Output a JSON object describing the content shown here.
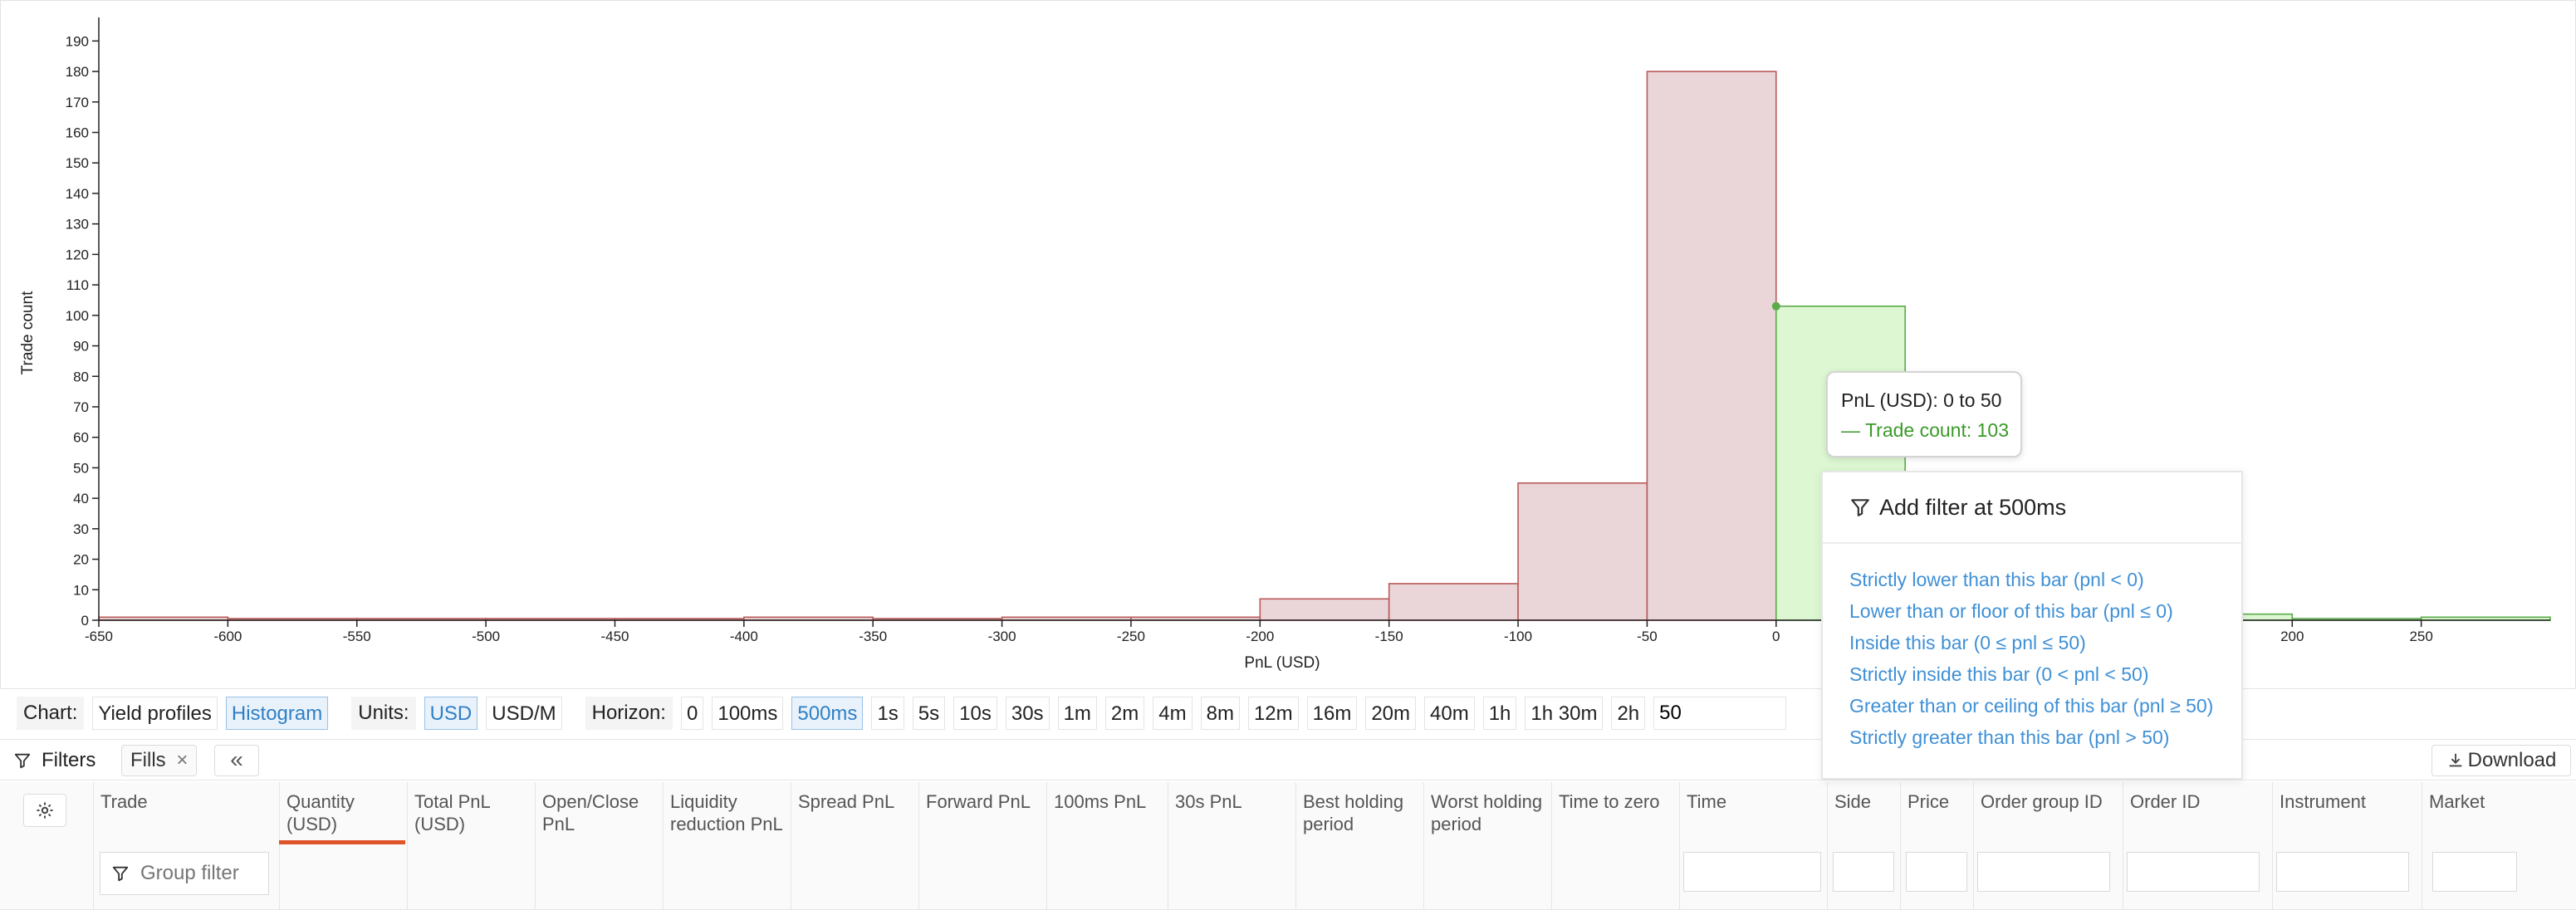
{
  "chart_data": {
    "type": "bar",
    "bin_width": 50,
    "bins": [
      {
        "start": -650,
        "end": -600,
        "count": 1,
        "side": "loss"
      },
      {
        "start": -600,
        "end": -550,
        "count": 0,
        "side": "loss"
      },
      {
        "start": -550,
        "end": -500,
        "count": 0,
        "side": "loss"
      },
      {
        "start": -500,
        "end": -450,
        "count": 0,
        "side": "loss"
      },
      {
        "start": -450,
        "end": -400,
        "count": 0,
        "side": "loss"
      },
      {
        "start": -400,
        "end": -350,
        "count": 1,
        "side": "loss"
      },
      {
        "start": -350,
        "end": -300,
        "count": 0,
        "side": "loss"
      },
      {
        "start": -300,
        "end": -250,
        "count": 1,
        "side": "loss"
      },
      {
        "start": -250,
        "end": -200,
        "count": 1,
        "side": "loss"
      },
      {
        "start": -200,
        "end": -150,
        "count": 7,
        "side": "loss"
      },
      {
        "start": -150,
        "end": -100,
        "count": 12,
        "side": "loss"
      },
      {
        "start": -100,
        "end": -50,
        "count": 45,
        "side": "loss"
      },
      {
        "start": -50,
        "end": 0,
        "count": 180,
        "side": "loss"
      },
      {
        "start": 0,
        "end": 50,
        "count": 103,
        "side": "gain"
      },
      {
        "start": 150,
        "end": 200,
        "count": 2,
        "side": "gain"
      },
      {
        "start": 200,
        "end": 250,
        "count": 0,
        "side": "gain"
      },
      {
        "start": 250,
        "end": 300,
        "count": 1,
        "side": "gain"
      }
    ],
    "xlabel": "PnL (USD)",
    "ylabel": "Trade count",
    "xlim": [
      -650,
      300
    ],
    "ylim": [
      0,
      195
    ],
    "xticks": [
      -650,
      -600,
      -550,
      -500,
      -450,
      -400,
      -350,
      -300,
      -250,
      -200,
      -150,
      -100,
      -50,
      0,
      200,
      250
    ],
    "yticks": [
      0,
      10,
      20,
      30,
      40,
      50,
      60,
      70,
      80,
      90,
      100,
      110,
      120,
      130,
      140,
      150,
      160,
      170,
      180,
      190
    ],
    "colors": {
      "loss_fill": "#ead5d8",
      "loss_stroke": "#b95a5a",
      "gain_fill": "#dcf7d2",
      "gain_stroke": "#5aab4a"
    }
  },
  "tooltip": {
    "title": "PnL (USD): 0 to 50",
    "value": "— Trade count: 103"
  },
  "filter_popup": {
    "title": "Add filter at 500ms",
    "options": [
      "Strictly lower than this bar (pnl < 0)",
      "Lower than or floor of this bar (pnl ≤ 0)",
      "Inside this bar (0 ≤ pnl ≤ 50)",
      "Strictly inside this bar (0 < pnl < 50)",
      "Greater than or ceiling of this bar (pnl ≥ 50)",
      "Strictly greater than this bar (pnl > 50)"
    ]
  },
  "controls": {
    "chart_label": "Chart:",
    "chart_options": [
      "Yield profiles",
      "Histogram"
    ],
    "chart_selected": "Histogram",
    "units_label": "Units:",
    "units_options": [
      "USD",
      "USD/M"
    ],
    "units_selected": "USD",
    "horizon_label": "Horizon:",
    "horizon_options": [
      "0",
      "100ms",
      "500ms",
      "1s",
      "5s",
      "10s",
      "30s",
      "1m",
      "2m",
      "4m",
      "8m",
      "12m",
      "16m",
      "20m",
      "40m",
      "1h",
      "1h 30m",
      "2h"
    ],
    "horizon_selected": "500ms",
    "horizon_input": "50"
  },
  "filters_bar": {
    "label": "Filters",
    "chip": "Fills",
    "chip_close": "×",
    "collapse": "«",
    "download": "Download"
  },
  "table": {
    "group_filter_placeholder": "Group filter",
    "sorted_column": "Quantity (USD)",
    "columns": [
      "Trade",
      "Quantity (USD)",
      "Total PnL (USD)",
      "Open/Close PnL",
      "Liquidity reduction PnL",
      "Spread PnL",
      "Forward PnL",
      "100ms PnL",
      "30s PnL",
      "Best holding period",
      "Worst holding period",
      "Time to zero",
      "Time",
      "Side",
      "Price",
      "Order group ID",
      "Order ID",
      "Instrument",
      "Market"
    ]
  }
}
